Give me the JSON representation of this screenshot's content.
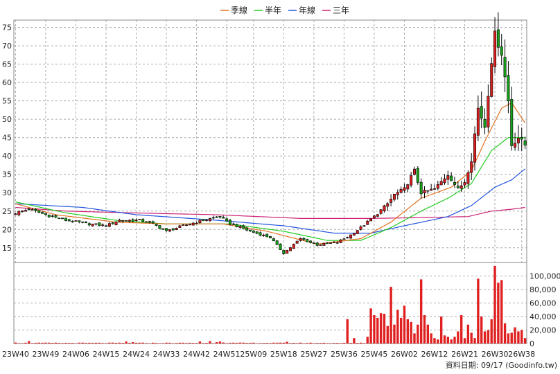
{
  "chart_data": {
    "type": "candlestick",
    "title": "",
    "legend": [
      {
        "name": "季線",
        "color": "#e07020"
      },
      {
        "name": "半年",
        "color": "#22cc22"
      },
      {
        "name": "年線",
        "color": "#2255dd"
      },
      {
        "name": "三年",
        "color": "#cc2277"
      }
    ],
    "price_axis": {
      "ylim": [
        11,
        77
      ],
      "ticks": [
        15,
        20,
        25,
        30,
        35,
        40,
        45,
        50,
        55,
        60,
        65,
        70,
        75
      ]
    },
    "volume_axis": {
      "ylim": [
        0,
        120000
      ],
      "ticks": [
        "0",
        "20,000",
        "40,000",
        "60,000",
        "80,000",
        "100,000"
      ],
      "tick_values": [
        0,
        20000,
        40000,
        60000,
        80000,
        100000
      ]
    },
    "x_labels": [
      "23W40",
      "23W49",
      "24W06",
      "24W15",
      "24W24",
      "24W33",
      "24W42",
      "24W51",
      "25W09",
      "25W18",
      "25W27",
      "25W36",
      "25W45",
      "26W02",
      "26W12",
      "26W21",
      "26W30",
      "26W38"
    ],
    "x_label_index": [
      0,
      9,
      18,
      27,
      36,
      45,
      54,
      63,
      71,
      80,
      89,
      98,
      107,
      116,
      125,
      134,
      143,
      151
    ],
    "weeks": 153,
    "ohlc_anchors": [
      [
        0,
        24.5
      ],
      [
        4,
        25.5
      ],
      [
        9,
        24
      ],
      [
        15,
        22.5
      ],
      [
        22,
        21.5
      ],
      [
        27,
        21
      ],
      [
        31,
        22.5
      ],
      [
        37,
        22.5
      ],
      [
        40,
        22
      ],
      [
        45,
        19.5
      ],
      [
        50,
        21
      ],
      [
        56,
        22.5
      ],
      [
        61,
        23.5
      ],
      [
        63,
        22
      ],
      [
        70,
        19.5
      ],
      [
        76,
        17.8
      ],
      [
        80,
        13.5
      ],
      [
        85,
        17.5
      ],
      [
        90,
        15.8
      ],
      [
        96,
        16.5
      ],
      [
        100,
        18.5
      ],
      [
        103,
        20.5
      ],
      [
        107,
        23.5
      ],
      [
        111,
        27
      ],
      [
        113,
        29.5
      ],
      [
        116,
        31
      ],
      [
        119,
        36
      ],
      [
        121,
        30
      ],
      [
        125,
        31
      ],
      [
        129,
        35
      ],
      [
        132,
        31
      ],
      [
        134,
        33
      ],
      [
        136,
        39
      ],
      [
        138,
        53
      ],
      [
        140,
        48
      ],
      [
        142,
        66
      ],
      [
        143,
        73
      ],
      [
        145,
        68
      ],
      [
        147,
        55
      ],
      [
        148,
        43
      ],
      [
        150,
        45
      ],
      [
        152,
        43
      ]
    ],
    "ma_quarterly_anchors": [
      [
        0,
        27
      ],
      [
        12,
        24
      ],
      [
        30,
        22
      ],
      [
        45,
        21.5
      ],
      [
        62,
        21.5
      ],
      [
        75,
        19.5
      ],
      [
        90,
        16
      ],
      [
        103,
        17.5
      ],
      [
        112,
        22
      ],
      [
        121,
        28.5
      ],
      [
        130,
        31.5
      ],
      [
        136,
        36
      ],
      [
        140,
        44
      ],
      [
        145,
        53
      ],
      [
        148,
        54.5
      ],
      [
        152,
        49
      ]
    ],
    "ma_half_anchors": [
      [
        0,
        27.5
      ],
      [
        15,
        24.5
      ],
      [
        30,
        22.5
      ],
      [
        45,
        21.5
      ],
      [
        64,
        21.5
      ],
      [
        80,
        19.5
      ],
      [
        93,
        17
      ],
      [
        103,
        17
      ],
      [
        112,
        20.5
      ],
      [
        121,
        25
      ],
      [
        129,
        28.5
      ],
      [
        136,
        32.5
      ],
      [
        142,
        41.5
      ],
      [
        147,
        45
      ],
      [
        152,
        45
      ]
    ],
    "ma_year_anchors": [
      [
        0,
        27
      ],
      [
        20,
        26
      ],
      [
        36,
        24
      ],
      [
        60,
        22.5
      ],
      [
        80,
        21
      ],
      [
        95,
        19
      ],
      [
        106,
        19
      ],
      [
        116,
        21
      ],
      [
        129,
        23.5
      ],
      [
        136,
        26.5
      ],
      [
        143,
        31.5
      ],
      [
        148,
        33.5
      ],
      [
        152,
        36.5
      ]
    ],
    "ma_three_year_anchors": [
      [
        0,
        26
      ],
      [
        15,
        25
      ],
      [
        35,
        24.5
      ],
      [
        60,
        24
      ],
      [
        85,
        23
      ],
      [
        106,
        23
      ],
      [
        120,
        23.2
      ],
      [
        135,
        23.5
      ],
      [
        142,
        25
      ],
      [
        148,
        25.5
      ],
      [
        152,
        26
      ]
    ],
    "volume_bars": [
      [
        0,
        1500
      ],
      [
        4,
        3500
      ],
      [
        8,
        1200
      ],
      [
        33,
        3000
      ],
      [
        35,
        2000
      ],
      [
        55,
        3000
      ],
      [
        58,
        3500
      ],
      [
        60,
        2000
      ],
      [
        61,
        3000
      ],
      [
        62,
        1500
      ],
      [
        81,
        2500
      ],
      [
        99,
        36000
      ],
      [
        101,
        8000
      ],
      [
        105,
        10000
      ],
      [
        106,
        52000
      ],
      [
        107,
        42000
      ],
      [
        108,
        38000
      ],
      [
        109,
        45000
      ],
      [
        110,
        44000
      ],
      [
        111,
        26000
      ],
      [
        112,
        84000
      ],
      [
        113,
        28000
      ],
      [
        114,
        50000
      ],
      [
        115,
        38000
      ],
      [
        116,
        56000
      ],
      [
        117,
        36000
      ],
      [
        118,
        32000
      ],
      [
        119,
        15000
      ],
      [
        120,
        28000
      ],
      [
        121,
        95000
      ],
      [
        122,
        42000
      ],
      [
        123,
        28000
      ],
      [
        124,
        15000
      ],
      [
        125,
        8000
      ],
      [
        126,
        6000
      ],
      [
        127,
        40000
      ],
      [
        128,
        12000
      ],
      [
        129,
        10000
      ],
      [
        130,
        6000
      ],
      [
        131,
        10000
      ],
      [
        132,
        18000
      ],
      [
        133,
        42000
      ],
      [
        134,
        8000
      ],
      [
        135,
        28000
      ],
      [
        136,
        16000
      ],
      [
        137,
        8000
      ],
      [
        138,
        96000
      ],
      [
        139,
        40000
      ],
      [
        140,
        18000
      ],
      [
        141,
        20000
      ],
      [
        142,
        36000
      ],
      [
        143,
        115000
      ],
      [
        144,
        90000
      ],
      [
        145,
        94000
      ],
      [
        146,
        30000
      ],
      [
        147,
        15000
      ],
      [
        148,
        16000
      ],
      [
        149,
        24000
      ],
      [
        150,
        18000
      ],
      [
        151,
        20000
      ],
      [
        152,
        8000
      ]
    ]
  },
  "credit": "資料日期: 09/17  (Goodinfo.tw)"
}
